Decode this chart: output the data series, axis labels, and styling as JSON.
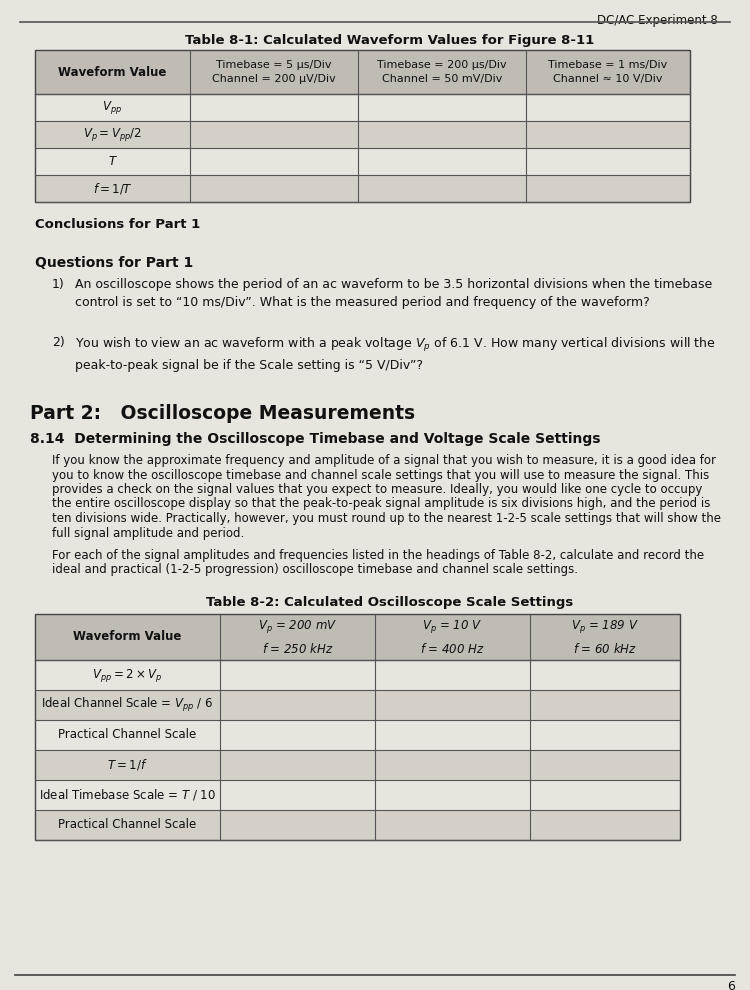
{
  "page_header": "DC/AC Experiment 8",
  "table1_title": "Table 8-1: Calculated Waveform Values for Figure 8-11",
  "table1_header_col0": "Waveform Value",
  "table1_header_col1": "Timebase = 5 μs/Div\nChannel = 200 μV/Div",
  "table1_header_col2": "Timebase = 200 μs/Div\nChannel = 50 mV/Div",
  "table1_header_col3": "Timebase = 1 ms/Div\nChannel ≈ 10 V/Div",
  "table1_rows": [
    "$V_{pp}$",
    "$V_p = V_{pp}/2$",
    "$T$",
    "$f = 1/T$"
  ],
  "conclusions_label": "Conclusions for Part 1",
  "questions_label": "Questions for Part 1",
  "q1_text": "An oscilloscope shows the period of an ac waveform to be 3.5 horizontal divisions when the timebase\ncontrol is set to “10 ms/Div”. What is the measured period and frequency of the waveform?",
  "q2_text": "You wish to view an ac waveform with a peak voltage $V_p$ of 6.1 V. How many vertical divisions will the\npeak-to-peak signal be if the Scale setting is “5 V/Div”?",
  "part2_label": "Part 2:   Oscilloscope Measurements",
  "section_label": "8.14  Determining the Oscilloscope Timebase and Voltage Scale Settings",
  "para1_lines": [
    "If you know the approximate frequency and amplitude of a signal that you wish to measure, it is a good idea for",
    "you to know the oscilloscope timebase and channel scale settings that you will use to measure the signal. This",
    "provides a check on the signal values that you expect to measure. Ideally, you would like one cycle to occupy",
    "the entire oscilloscope display so that the peak-to-peak signal amplitude is six divisions high, and the period is",
    "ten divisions wide. Practically, however, you must round up to the nearest 1-2-5 scale settings that will show the",
    "full signal amplitude and period."
  ],
  "para2_lines": [
    "For each of the signal amplitudes and frequencies listed in the headings of Table 8-2, calculate and record the",
    "ideal and practical (1-2-5 progression) oscilloscope timebase and channel scale settings."
  ],
  "table2_title": "Table 8-2: Calculated Oscilloscope Scale Settings",
  "table2_header_col0": "Waveform Value",
  "table2_header_col1": "$V_p$ = 200 mV\n$f$ = 250 kHz",
  "table2_header_col2": "$V_p$ = 10 V\n$f$ = 400 Hz",
  "table2_header_col3": "$V_p$ = 189 V\n$f$ = 60 kHz",
  "table2_rows": [
    "$V_{pp} = 2 \\times V_p$",
    "Ideal Channel Scale = $V_{pp}$ / 6",
    "Practical Channel Scale",
    "$T = 1/f$",
    "Ideal Timebase Scale = $T$ / 10",
    "Practical Channel Scale"
  ],
  "page_number": "6",
  "bg_color": "#e8e4de",
  "header_bg": "#c0bcb4",
  "row_alt_bg": "#d4d0c8",
  "row_bg": "#e8e4de"
}
